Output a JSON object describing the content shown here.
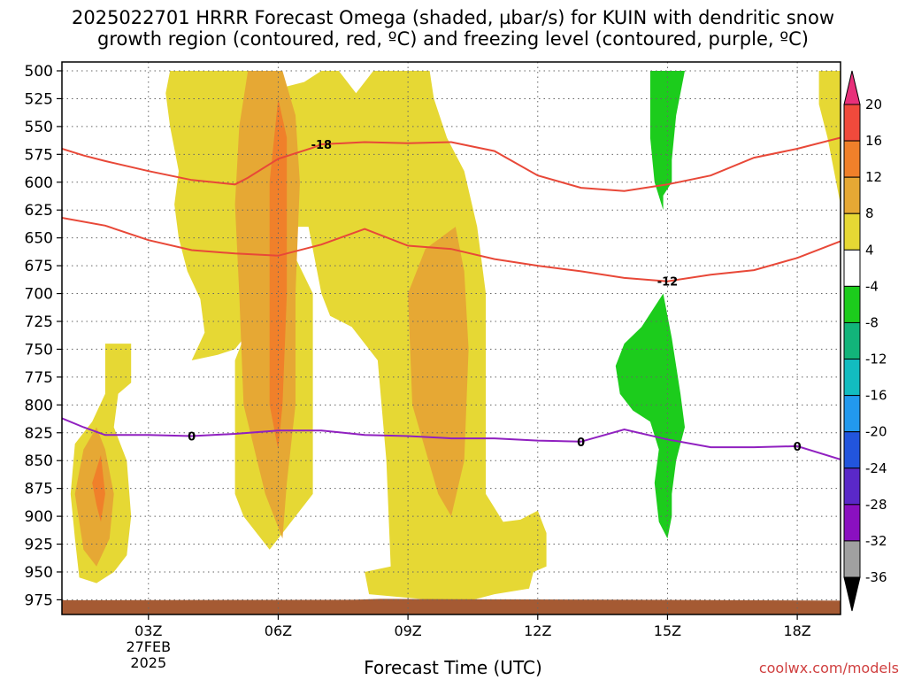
{
  "chart_data": {
    "type": "heatmap",
    "title_line1": "2025022701 HRRR Forecast Omega (shaded, µbar/s) for KUIN with dendritic snow",
    "title_line2": "growth region (contoured, red, ºC) and freezing level (contoured, purple, ºC)",
    "xlabel": "Forecast Time (UTC)",
    "x_ticks": [
      {
        "h": 3,
        "label": "03Z",
        "sub1": "27FEB",
        "sub2": "2025"
      },
      {
        "h": 6,
        "label": "06Z"
      },
      {
        "h": 9,
        "label": "09Z"
      },
      {
        "h": 12,
        "label": "12Z"
      },
      {
        "h": 15,
        "label": "15Z"
      },
      {
        "h": 18,
        "label": "18Z"
      }
    ],
    "xlim": [
      1,
      19
    ],
    "y_ticks": [
      500,
      525,
      550,
      575,
      600,
      625,
      650,
      675,
      700,
      725,
      750,
      775,
      800,
      825,
      850,
      875,
      900,
      925,
      950,
      975
    ],
    "ylim": [
      500,
      985
    ],
    "colorbar": {
      "labels": [
        "20",
        "16",
        "12",
        "8",
        "4",
        "-4",
        "-8",
        "-12",
        "-16",
        "-20",
        "-24",
        "-28",
        "-32",
        "-36"
      ],
      "colors": [
        "#e8307a",
        "#f04a3c",
        "#f0802a",
        "#e6a834",
        "#e6d834",
        "#ffffff",
        "#1ccc1c",
        "#12b47a",
        "#12bcc0",
        "#2299ee",
        "#2255dd",
        "#5a28c8",
        "#8a10c0",
        "#a0a0a0"
      ]
    },
    "shading": [
      {
        "level": 4,
        "color": "#e6d834",
        "points": [
          [
            3.5,
            500
          ],
          [
            5.8,
            500
          ],
          [
            6.1,
            515
          ],
          [
            6.6,
            510
          ],
          [
            7,
            500
          ],
          [
            7.4,
            500
          ],
          [
            7.8,
            520
          ],
          [
            8,
            510
          ],
          [
            8.2,
            500
          ],
          [
            9.5,
            500
          ],
          [
            9.6,
            525
          ],
          [
            9.9,
            560
          ],
          [
            10.3,
            590
          ],
          [
            10.6,
            640
          ],
          [
            10.8,
            700
          ],
          [
            10.8,
            880
          ],
          [
            11.2,
            905
          ],
          [
            11.6,
            903
          ],
          [
            12,
            895
          ],
          [
            12.2,
            915
          ],
          [
            12.2,
            945
          ],
          [
            11.9,
            950
          ],
          [
            11.8,
            965
          ],
          [
            11,
            970
          ],
          [
            10.2,
            978
          ],
          [
            9.5,
            975
          ],
          [
            8.1,
            970
          ],
          [
            8,
            950
          ],
          [
            8.6,
            945
          ],
          [
            8.5,
            850
          ],
          [
            8.3,
            760
          ],
          [
            7.7,
            730
          ],
          [
            7.2,
            720
          ],
          [
            7,
            700
          ],
          [
            6.7,
            640
          ],
          [
            5.9,
            640
          ],
          [
            5.4,
            660
          ],
          [
            5.2,
            700
          ],
          [
            5.2,
            740
          ],
          [
            5,
            750
          ],
          [
            4.6,
            755
          ],
          [
            4,
            760
          ],
          [
            4.3,
            735
          ],
          [
            4.2,
            705
          ],
          [
            3.9,
            680
          ],
          [
            3.7,
            650
          ],
          [
            3.6,
            620
          ],
          [
            3.7,
            590
          ],
          [
            3.5,
            550
          ],
          [
            3.4,
            520
          ]
        ]
      },
      {
        "level": 4,
        "color": "#e6d834",
        "points": [
          [
            5.9,
            660
          ],
          [
            6.3,
            660
          ],
          [
            6.8,
            700
          ],
          [
            6.8,
            880
          ],
          [
            6.2,
            910
          ],
          [
            5.8,
            930
          ],
          [
            5.2,
            900
          ],
          [
            5,
            880
          ],
          [
            5,
            760
          ],
          [
            5.4,
            720
          ],
          [
            5.6,
            680
          ]
        ]
      },
      {
        "level": 4,
        "color": "#e6d834",
        "points": [
          [
            2,
            745
          ],
          [
            2.6,
            745
          ],
          [
            2.6,
            780
          ],
          [
            2.3,
            790
          ],
          [
            2.2,
            820
          ],
          [
            2.5,
            850
          ],
          [
            2.6,
            900
          ],
          [
            2.5,
            935
          ],
          [
            2.2,
            950
          ],
          [
            1.8,
            960
          ],
          [
            1.4,
            955
          ],
          [
            1.3,
            920
          ],
          [
            1.2,
            880
          ],
          [
            1.3,
            835
          ],
          [
            1.7,
            815
          ],
          [
            2,
            790
          ]
        ]
      },
      {
        "level": 4,
        "color": "#e6d834",
        "points": [
          [
            18.5,
            500
          ],
          [
            19,
            500
          ],
          [
            19,
            620
          ],
          [
            18.7,
            560
          ],
          [
            18.5,
            530
          ]
        ]
      },
      {
        "level": 8,
        "color": "#e6a834",
        "points": [
          [
            5.3,
            500
          ],
          [
            6.1,
            500
          ],
          [
            6.4,
            540
          ],
          [
            6.5,
            600
          ],
          [
            6.4,
            700
          ],
          [
            6.4,
            800
          ],
          [
            6.2,
            870
          ],
          [
            6.1,
            920
          ],
          [
            5.7,
            880
          ],
          [
            5.2,
            800
          ],
          [
            5.1,
            700
          ],
          [
            5,
            620
          ],
          [
            5.1,
            550
          ]
        ]
      },
      {
        "level": 8,
        "color": "#e6a834",
        "points": [
          [
            10.1,
            640
          ],
          [
            10.3,
            680
          ],
          [
            10.4,
            750
          ],
          [
            10.3,
            850
          ],
          [
            10,
            900
          ],
          [
            9.7,
            880
          ],
          [
            9.1,
            800
          ],
          [
            9,
            700
          ],
          [
            9.4,
            660
          ]
        ]
      },
      {
        "level": 8,
        "color": "#e6a834",
        "points": [
          [
            1.8,
            820
          ],
          [
            2,
            840
          ],
          [
            2.2,
            880
          ],
          [
            2.1,
            920
          ],
          [
            1.8,
            945
          ],
          [
            1.5,
            930
          ],
          [
            1.3,
            880
          ],
          [
            1.5,
            840
          ]
        ]
      },
      {
        "level": 12,
        "color": "#f0802a",
        "points": [
          [
            6,
            525
          ],
          [
            6.2,
            560
          ],
          [
            6.2,
            700
          ],
          [
            6.1,
            800
          ],
          [
            6,
            840
          ],
          [
            5.8,
            800
          ],
          [
            5.8,
            700
          ],
          [
            5.8,
            600
          ]
        ]
      },
      {
        "level": 12,
        "color": "#f0802a",
        "points": [
          [
            1.9,
            845
          ],
          [
            2,
            880
          ],
          [
            1.9,
            905
          ],
          [
            1.8,
            890
          ],
          [
            1.7,
            870
          ]
        ]
      },
      {
        "level": -4,
        "color": "#1ccc1c",
        "points": [
          [
            14.6,
            500
          ],
          [
            15.4,
            500
          ],
          [
            15.2,
            540
          ],
          [
            15.1,
            580
          ],
          [
            15.1,
            600
          ],
          [
            14.9,
            612
          ],
          [
            14.9,
            625
          ],
          [
            14.7,
            600
          ],
          [
            14.6,
            560
          ]
        ]
      },
      {
        "level": -4,
        "color": "#1ccc1c",
        "points": [
          [
            14.9,
            700
          ],
          [
            15.1,
            740
          ],
          [
            15.3,
            790
          ],
          [
            15.4,
            820
          ],
          [
            15.2,
            850
          ],
          [
            15.1,
            880
          ],
          [
            15.1,
            900
          ],
          [
            15,
            920
          ],
          [
            14.8,
            905
          ],
          [
            14.7,
            870
          ],
          [
            14.8,
            840
          ],
          [
            14.6,
            815
          ],
          [
            14.2,
            805
          ],
          [
            13.9,
            790
          ],
          [
            13.8,
            765
          ],
          [
            14,
            745
          ],
          [
            14.4,
            730
          ]
        ]
      }
    ],
    "series": [
      {
        "name": "-18",
        "color": "#e84838",
        "width": 2,
        "x": [
          1,
          1.5,
          2,
          3,
          4,
          4.5,
          5,
          5.3,
          6,
          6.8,
          7,
          8,
          9,
          10,
          11,
          12,
          13,
          14,
          15,
          16,
          17,
          18,
          19
        ],
        "y": [
          570,
          576,
          581,
          590,
          598,
          600,
          602,
          596,
          579,
          569,
          566,
          564,
          565,
          564,
          572,
          594,
          605,
          608,
          602,
          594,
          578,
          570,
          560
        ],
        "label_at": 7,
        "label_pos": 566
      },
      {
        "name": "-12",
        "color": "#e84838",
        "width": 2,
        "x": [
          1,
          2,
          3,
          4,
          5,
          6,
          7,
          8,
          9,
          10,
          11,
          12,
          13,
          14,
          15,
          16,
          17,
          18,
          19
        ],
        "y": [
          632,
          639,
          652,
          661,
          664,
          666,
          656,
          642,
          657,
          660,
          669,
          675,
          680,
          686,
          689,
          683,
          679,
          668,
          653
        ],
        "label_at": 15,
        "label_pos": 689
      },
      {
        "name": "0",
        "color": "#9020c0",
        "width": 2,
        "x": [
          1,
          1.5,
          2,
          3,
          4,
          5,
          6,
          7,
          8,
          9,
          10,
          11,
          12,
          13,
          14,
          15,
          16,
          17,
          18,
          19
        ],
        "y": [
          812,
          820,
          827,
          827,
          828,
          826,
          823,
          823,
          827,
          828,
          830,
          830,
          832,
          833,
          822,
          831,
          838,
          838,
          837,
          849
        ],
        "label_at": 4,
        "label_pos": 828,
        "label_at2": 13,
        "label_pos2": 833,
        "label_at3": 18,
        "label_pos3": 837
      }
    ],
    "terrain": {
      "color": "#a55a33",
      "top": 975
    }
  },
  "watermark": "coolwx.com/models"
}
